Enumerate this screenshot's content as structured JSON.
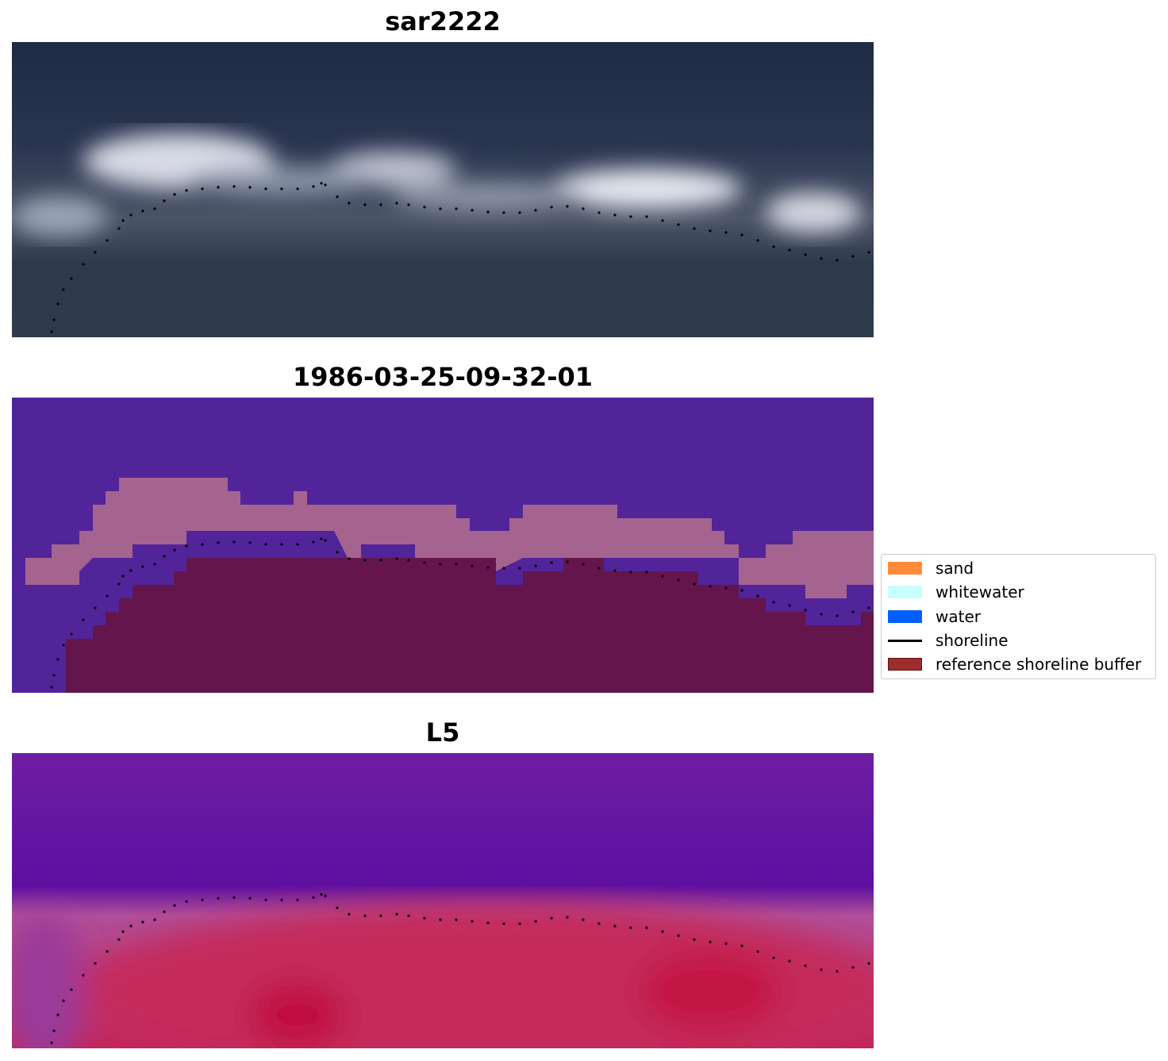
{
  "chart_data": [
    {
      "type": "image",
      "title": "sar2222",
      "axes": "off",
      "overlay": "shoreline"
    },
    {
      "type": "image",
      "title": "1986-03-25-09-32-01",
      "axes": "off",
      "overlay": "shoreline",
      "classes": {
        "background": "#52249a",
        "sand_band": "#a5648f",
        "reference_buffer": "#63154c"
      }
    },
    {
      "type": "image",
      "title": "L5",
      "axes": "off",
      "overlay": "shoreline"
    }
  ],
  "legend": {
    "placement": "right",
    "entries": [
      {
        "label": "sand",
        "color": "#ff8c3a",
        "kind": "patch"
      },
      {
        "label": "whitewater",
        "color": "#c8ffff",
        "kind": "patch"
      },
      {
        "label": "water",
        "color": "#0060ff",
        "kind": "patch"
      },
      {
        "label": "shoreline",
        "color": "#000000",
        "kind": "line"
      },
      {
        "label": "reference shoreline buffer",
        "color": "#9b2d2d",
        "kind": "patch"
      }
    ]
  }
}
